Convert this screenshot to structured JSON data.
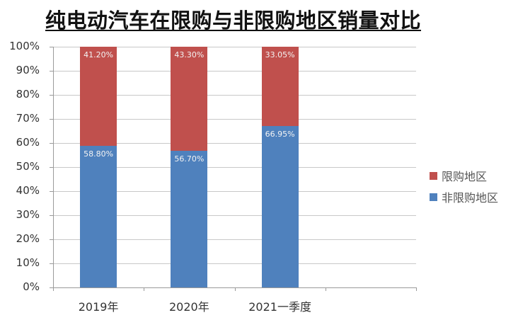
{
  "title": "纯电动汽车在限购与非限购地区销量对比",
  "chart_data": {
    "type": "bar",
    "stacked": true,
    "title": "纯电动汽车在限购与非限购地区销量对比",
    "xlabel": "",
    "ylabel": "",
    "ylim": [
      0,
      100
    ],
    "y_ticks": [
      "0%",
      "10%",
      "20%",
      "30%",
      "40%",
      "50%",
      "60%",
      "70%",
      "80%",
      "90%",
      "100%"
    ],
    "categories": [
      "2019年",
      "2020年",
      "2021一季度"
    ],
    "series": [
      {
        "name": "非限购地区",
        "color": "#4f81bd",
        "values": [
          58.8,
          56.7,
          66.95
        ],
        "labels": [
          "58.80%",
          "56.70%",
          "66.95%"
        ]
      },
      {
        "name": "限购地区",
        "color": "#c0504d",
        "values": [
          41.2,
          43.3,
          33.05
        ],
        "labels": [
          "41.20%",
          "43.30%",
          "33.05%"
        ]
      }
    ],
    "legend": {
      "position": "right",
      "entries": [
        {
          "name": "限购地区",
          "color": "#c0504d"
        },
        {
          "name": "非限购地区",
          "color": "#4f81bd"
        }
      ]
    },
    "grid": true
  }
}
